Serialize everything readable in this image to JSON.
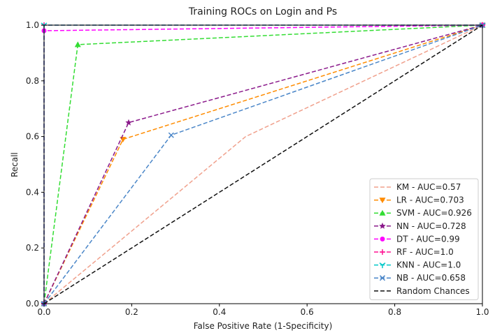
{
  "chart_data": {
    "type": "line",
    "title": "Training ROCs on Login and Ps",
    "xlabel": "False Positive Rate (1-Specificity)",
    "ylabel": "Recall",
    "xlim": [
      0,
      1
    ],
    "ylim": [
      0,
      1
    ],
    "x_ticks": [
      "0.0",
      "0.2",
      "0.4",
      "0.6",
      "0.8",
      "1.0"
    ],
    "y_ticks": [
      "0.0",
      "0.2",
      "0.4",
      "0.6",
      "0.8",
      "1.0"
    ],
    "grid": false,
    "legend_position": "lower-right",
    "series": [
      {
        "name": "KM - AUC=0.57",
        "color": "#f0a08c",
        "marker": "none",
        "x": [
          0,
          0.46,
          1
        ],
        "y": [
          0,
          0.6,
          1
        ]
      },
      {
        "name": "LR - AUC=0.703",
        "color": "#ff8c00",
        "marker": "triangle-down",
        "x": [
          0,
          0.18,
          1
        ],
        "y": [
          0,
          0.59,
          1
        ]
      },
      {
        "name": "SVM - AUC=0.926",
        "color": "#33dd33",
        "marker": "triangle-up",
        "x": [
          0,
          0.077,
          1
        ],
        "y": [
          0,
          0.93,
          1
        ]
      },
      {
        "name": "NN - AUC=0.728",
        "color": "#8b1a8b",
        "marker": "star",
        "x": [
          0,
          0.193,
          1
        ],
        "y": [
          0,
          0.65,
          1
        ]
      },
      {
        "name": "DT - AUC=0.99",
        "color": "#ff00ff",
        "marker": "circle",
        "x": [
          0,
          0,
          1
        ],
        "y": [
          0,
          0.98,
          1
        ]
      },
      {
        "name": "RF - AUC=1.0",
        "color": "#ff1493",
        "marker": "plus",
        "x": [
          0,
          0,
          1
        ],
        "y": [
          0,
          1,
          1
        ]
      },
      {
        "name": "KNN - AUC=1.0",
        "color": "#00c8c8",
        "marker": "tri",
        "x": [
          0,
          0,
          1
        ],
        "y": [
          0,
          1,
          1
        ]
      },
      {
        "name": "NB - AUC=0.658",
        "color": "#4a86c8",
        "marker": "x",
        "x": [
          0,
          0.29,
          1
        ],
        "y": [
          0,
          0.605,
          1
        ]
      },
      {
        "name": "Random Chances",
        "color": "#111111",
        "marker": "none",
        "x": [
          0,
          1
        ],
        "y": [
          0,
          1
        ]
      }
    ]
  }
}
